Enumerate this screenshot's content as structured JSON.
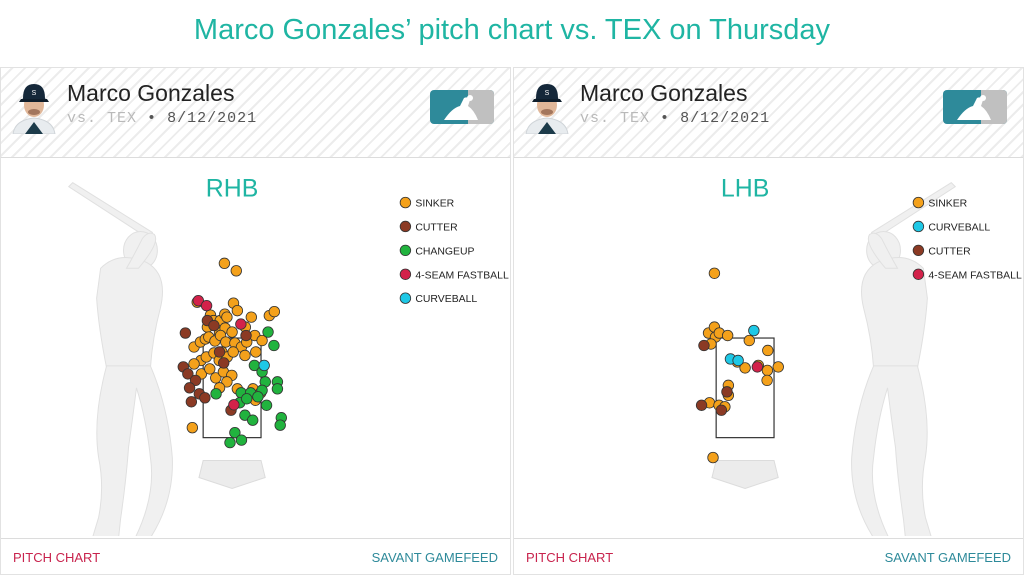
{
  "title": "Marco Gonzales’ pitch chart vs. TEX on Thursday",
  "panels": [
    {
      "pitcher": "Marco Gonzales",
      "opponent": "vs. TEX",
      "separator": "•",
      "date": "8/12/2021",
      "footer_left": "PITCH CHART",
      "footer_right": "SAVANT GAMEFEED"
    },
    {
      "pitcher": "Marco Gonzales",
      "opponent": "vs. TEX",
      "separator": "•",
      "date": "8/12/2021",
      "footer_left": "PITCH CHART",
      "footer_right": "SAVANT GAMEFEED"
    }
  ],
  "colors": {
    "SINKER": "#f4a11b",
    "CUTTER": "#8b3a24",
    "CHANGEUP": "#21b33e",
    "4-SEAM FASTBALL": "#d3224a",
    "CURVEBALL": "#1ec8e6",
    "title": "#1fb5a3",
    "footer_left": "#c8234d",
    "footer_right": "#2e8a9a"
  },
  "chart_data": [
    {
      "type": "scatter",
      "title": "RHB",
      "batter_side": "right",
      "legend": [
        "SINKER",
        "CUTTER",
        "CHANGEUP",
        "4-SEAM FASTBALL",
        "CURVEBALL"
      ],
      "legend_position": "top-right",
      "x_unit": "ft from plate center (catcher view)",
      "y_unit": "ft above ground",
      "xlim": [
        -2.9,
        2.9
      ],
      "ylim": [
        0,
        5.8
      ],
      "strike_zone": {
        "x": [
          -0.83,
          0.83
        ],
        "y": [
          1.5,
          3.5
        ]
      },
      "series": [
        {
          "name": "SINKER",
          "points": [
            [
              -0.22,
              5.0
            ],
            [
              0.12,
              4.85
            ],
            [
              -1.0,
              4.22
            ],
            [
              0.04,
              4.2
            ],
            [
              -0.62,
              3.96
            ],
            [
              -0.53,
              3.85
            ],
            [
              -0.34,
              3.85
            ],
            [
              -0.21,
              3.98
            ],
            [
              -0.15,
              3.92
            ],
            [
              0.15,
              4.05
            ],
            [
              0.55,
              3.92
            ],
            [
              1.07,
              3.95
            ],
            [
              1.21,
              4.03
            ],
            [
              -0.71,
              3.72
            ],
            [
              -0.36,
              3.6
            ],
            [
              -0.2,
              3.7
            ],
            [
              0.0,
              3.62
            ],
            [
              0.38,
              3.72
            ],
            [
              -1.09,
              3.32
            ],
            [
              -0.91,
              3.42
            ],
            [
              -0.77,
              3.48
            ],
            [
              -0.67,
              3.52
            ],
            [
              -0.49,
              3.44
            ],
            [
              -0.33,
              3.55
            ],
            [
              -0.18,
              3.42
            ],
            [
              0.08,
              3.4
            ],
            [
              0.27,
              3.32
            ],
            [
              0.42,
              3.42
            ],
            [
              0.65,
              3.55
            ],
            [
              0.86,
              3.45
            ],
            [
              -0.89,
              3.05
            ],
            [
              -0.74,
              3.12
            ],
            [
              -0.52,
              3.2
            ],
            [
              -0.37,
              3.05
            ],
            [
              -0.29,
              3.22
            ],
            [
              -0.14,
              3.12
            ],
            [
              0.03,
              3.22
            ],
            [
              0.37,
              3.15
            ],
            [
              0.68,
              3.22
            ],
            [
              -1.09,
              2.98
            ],
            [
              -0.88,
              2.78
            ],
            [
              -0.64,
              2.88
            ],
            [
              -0.47,
              2.7
            ],
            [
              -0.25,
              2.82
            ],
            [
              -0.01,
              2.75
            ],
            [
              -0.15,
              2.62
            ],
            [
              -0.36,
              2.5
            ],
            [
              0.15,
              2.48
            ],
            [
              -1.14,
              1.7
            ],
            [
              0.6,
              2.48
            ],
            [
              0.82,
              2.4
            ],
            [
              0.67,
              2.25
            ]
          ]
        },
        {
          "name": "CUTTER",
          "points": [
            [
              -1.34,
              3.6
            ],
            [
              -1.4,
              2.92
            ],
            [
              -1.27,
              2.78
            ],
            [
              -1.05,
              2.65
            ],
            [
              -1.22,
              2.5
            ],
            [
              -0.94,
              2.38
            ],
            [
              -1.17,
              2.22
            ],
            [
              -0.78,
              2.3
            ],
            [
              -0.71,
              3.85
            ],
            [
              -0.52,
              3.75
            ],
            [
              -0.36,
              3.22
            ],
            [
              -0.24,
              3.0
            ],
            [
              0.4,
              3.55
            ],
            [
              -0.03,
              2.05
            ]
          ]
        },
        {
          "name": "CHANGEUP",
          "points": [
            [
              1.03,
              3.62
            ],
            [
              1.2,
              3.35
            ],
            [
              0.64,
              2.95
            ],
            [
              0.86,
              2.82
            ],
            [
              0.95,
              2.62
            ],
            [
              1.3,
              2.62
            ],
            [
              1.3,
              2.48
            ],
            [
              0.86,
              2.45
            ],
            [
              0.26,
              2.4
            ],
            [
              0.53,
              2.4
            ],
            [
              -0.46,
              2.38
            ],
            [
              0.74,
              2.32
            ],
            [
              0.22,
              2.2
            ],
            [
              0.42,
              2.28
            ],
            [
              0.37,
              1.95
            ],
            [
              0.99,
              2.15
            ],
            [
              0.59,
              1.85
            ],
            [
              1.41,
              1.9
            ],
            [
              1.38,
              1.75
            ],
            [
              0.08,
              1.6
            ],
            [
              -0.06,
              1.4
            ],
            [
              0.27,
              1.45
            ]
          ]
        },
        {
          "name": "4-SEAM FASTBALL",
          "points": [
            [
              -0.97,
              4.25
            ],
            [
              -0.73,
              4.15
            ],
            [
              0.25,
              3.78
            ],
            [
              0.05,
              2.16
            ]
          ]
        },
        {
          "name": "CURVEBALL",
          "points": [
            [
              0.92,
              2.95
            ]
          ]
        }
      ]
    },
    {
      "type": "scatter",
      "title": "LHB",
      "batter_side": "left",
      "legend": [
        "SINKER",
        "CURVEBALL",
        "CUTTER",
        "4-SEAM FASTBALL"
      ],
      "legend_position": "top-right",
      "x_unit": "ft from plate center (catcher view)",
      "y_unit": "ft above ground",
      "xlim": [
        -2.9,
        2.9
      ],
      "ylim": [
        0,
        5.8
      ],
      "strike_zone": {
        "x": [
          -0.83,
          0.83
        ],
        "y": [
          1.5,
          3.5
        ]
      },
      "series": [
        {
          "name": "SINKER",
          "points": [
            [
              -0.88,
              4.8
            ],
            [
              -1.05,
              3.6
            ],
            [
              -0.88,
              3.72
            ],
            [
              -0.85,
              3.52
            ],
            [
              -0.74,
              3.6
            ],
            [
              -0.98,
              3.38
            ],
            [
              -0.5,
              3.55
            ],
            [
              0.12,
              3.45
            ],
            [
              -0.22,
              3.02
            ],
            [
              0.65,
              3.25
            ],
            [
              0.64,
              2.85
            ],
            [
              0.38,
              2.95
            ],
            [
              -0.48,
              2.55
            ],
            [
              0.95,
              2.92
            ],
            [
              0.63,
              2.65
            ],
            [
              -0.48,
              2.35
            ],
            [
              -1.02,
              2.2
            ],
            [
              -0.75,
              2.15
            ],
            [
              -0.58,
              2.12
            ],
            [
              -0.92,
              1.1
            ],
            [
              0.0,
              2.9
            ]
          ]
        },
        {
          "name": "CURVEBALL",
          "points": [
            [
              0.25,
              3.65
            ],
            [
              -0.42,
              3.08
            ],
            [
              -0.2,
              3.05
            ]
          ]
        },
        {
          "name": "CUTTER",
          "points": [
            [
              -1.18,
              3.35
            ],
            [
              -0.52,
              2.42
            ],
            [
              -1.25,
              2.15
            ],
            [
              -0.68,
              2.05
            ]
          ]
        },
        {
          "name": "4-SEAM FASTBALL",
          "points": [
            [
              0.35,
              2.92
            ]
          ]
        }
      ]
    }
  ]
}
